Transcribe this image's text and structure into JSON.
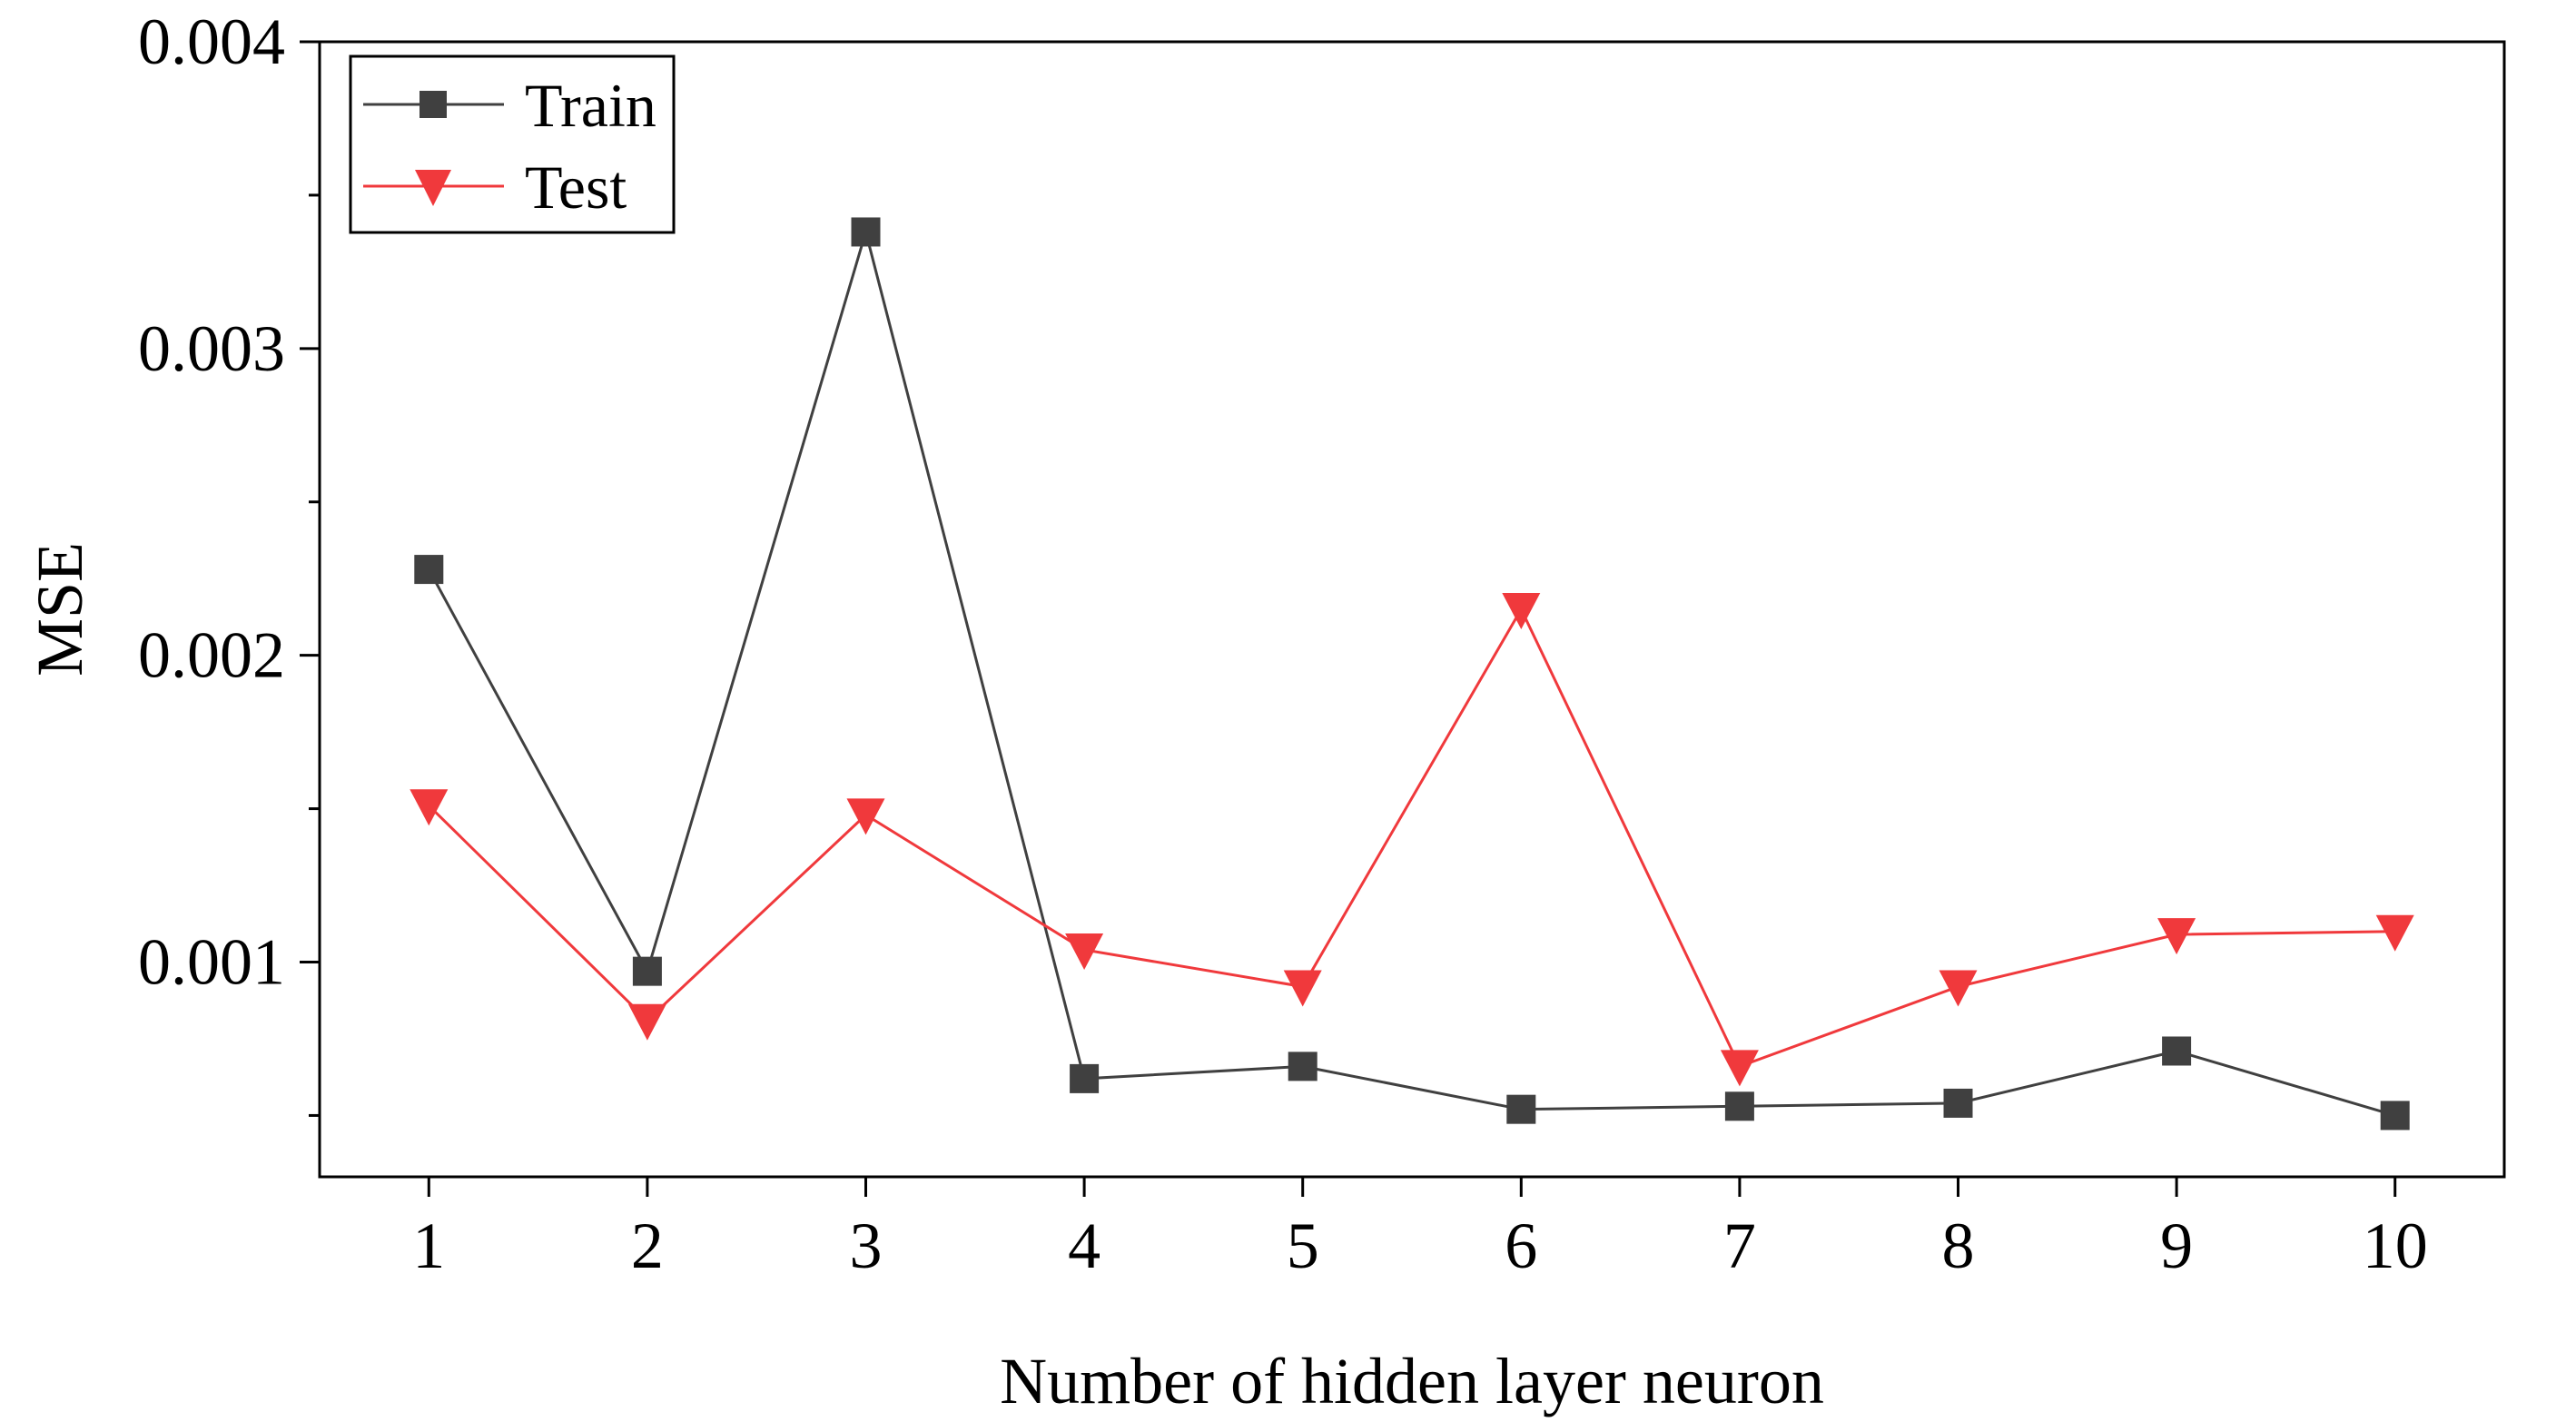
{
  "chart_data": {
    "type": "line",
    "xlabel": "Number of hidden layer neuron",
    "ylabel": "MSE",
    "x": [
      1,
      2,
      3,
      4,
      5,
      6,
      7,
      8,
      9,
      10
    ],
    "x_tick_labels": [
      "1",
      "2",
      "3",
      "4",
      "5",
      "6",
      "7",
      "8",
      "9",
      "10"
    ],
    "xlim": [
      0.5,
      10.5
    ],
    "ylim": [
      0.0003,
      0.004
    ],
    "y_tick_values": [
      0.001,
      0.002,
      0.003,
      0.004
    ],
    "y_tick_labels": [
      "0.001",
      "0.002",
      "0.003",
      "0.004"
    ],
    "y_minor_ticks": [
      0.0005,
      0.0015,
      0.0025,
      0.0035
    ],
    "legend_position": "top-left",
    "grid": false,
    "series": [
      {
        "name": "Train",
        "marker": "square",
        "color": "#404040",
        "values": [
          0.00228,
          0.00097,
          0.00338,
          0.00062,
          0.00066,
          0.00052,
          0.00053,
          0.00054,
          0.00071,
          0.0005
        ]
      },
      {
        "name": "Test",
        "marker": "triangle-down",
        "color": "#f0393c",
        "values": [
          0.00151,
          0.00081,
          0.00148,
          0.00104,
          0.00092,
          0.00215,
          0.00066,
          0.00092,
          0.00109,
          0.0011
        ]
      }
    ]
  }
}
